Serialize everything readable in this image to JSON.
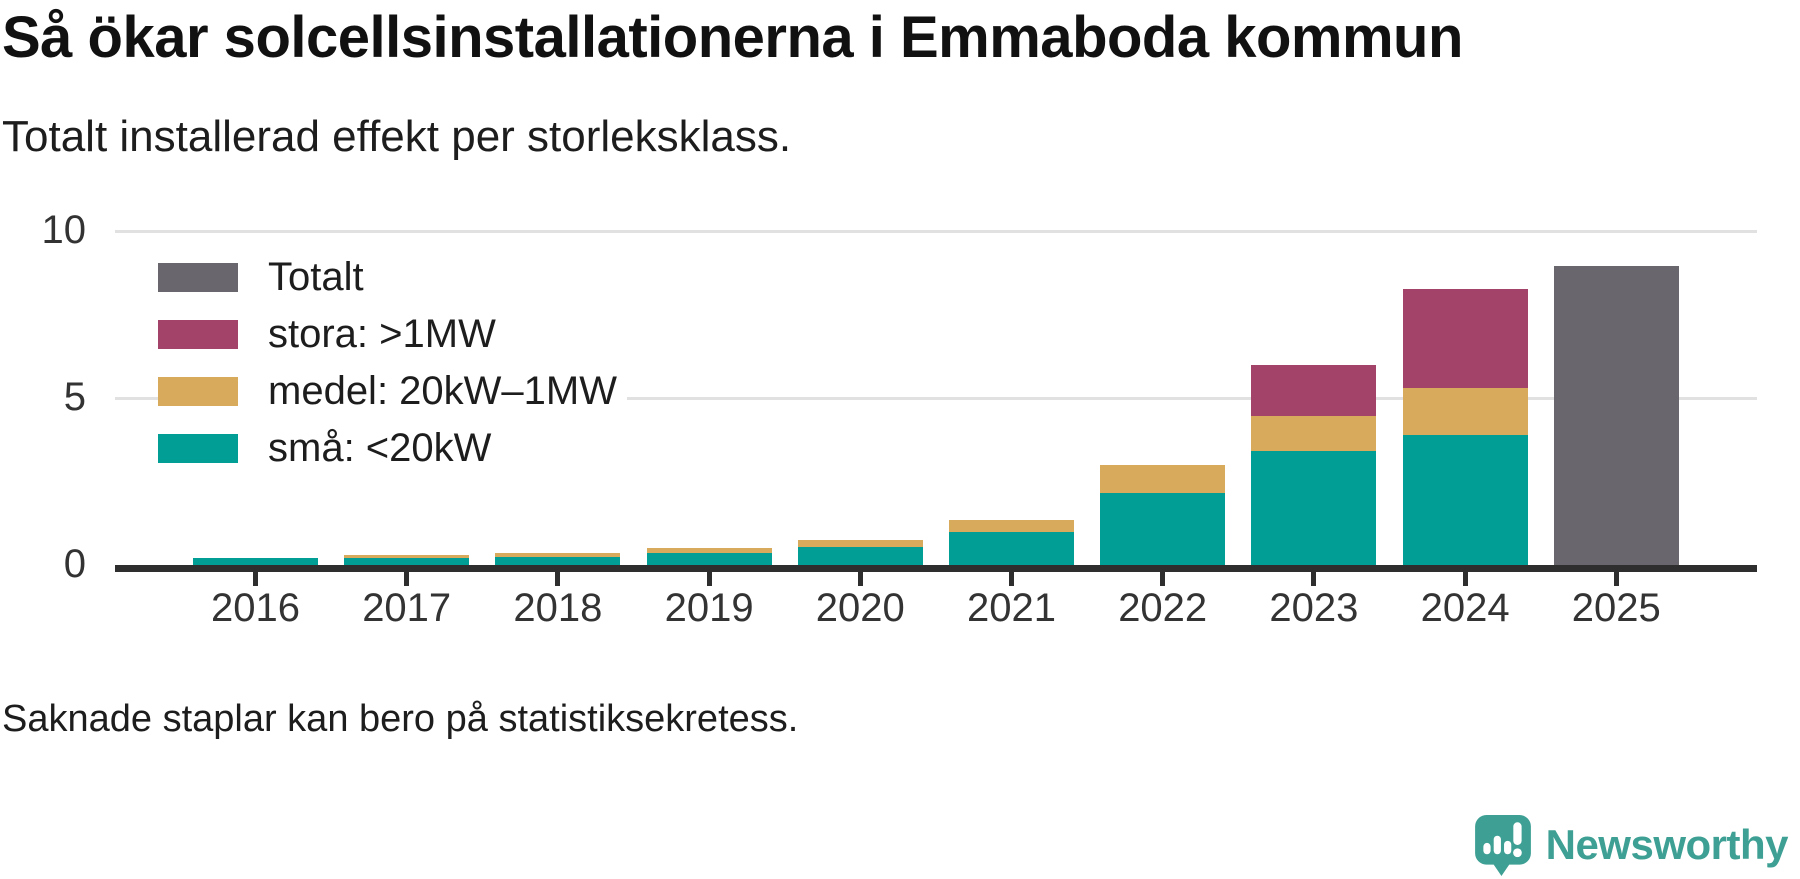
{
  "header": {
    "title": "Så ökar solcellsinstallationerna i Emmaboda kommun",
    "subtitle": "Totalt installerad effekt per storleksklass."
  },
  "footer": {
    "note": "Saknade staplar kan bero på statistiksekretess."
  },
  "branding": {
    "name": "Newsworthy",
    "icon": "newsworthy-speech-bubble-bar-chart-icon",
    "brand_color": "#3ea094"
  },
  "colors": {
    "total": "#69676d",
    "stora": "#a4436a",
    "medel": "#d8ab5c",
    "sma": "#009e94",
    "axis": "#2e2e2e",
    "grid": "#e1e1e1",
    "text": "#1d1d1d"
  },
  "chart_data": {
    "type": "bar",
    "stacked": true,
    "title": "Så ökar solcellsinstallationerna i Emmaboda kommun",
    "subtitle": "Totalt installerad effekt per storleksklass.",
    "xlabel": "",
    "ylabel": "",
    "ylim": [
      0,
      10
    ],
    "yticks": [
      0,
      5,
      10
    ],
    "grid": "horizontal",
    "legend_position": "top-left-inside",
    "categories": [
      "2016",
      "2017",
      "2018",
      "2019",
      "2020",
      "2021",
      "2022",
      "2023",
      "2024",
      "2025"
    ],
    "series": [
      {
        "name": "Totalt",
        "color": "#69676d",
        "values": [
          null,
          null,
          null,
          null,
          null,
          null,
          null,
          null,
          null,
          8.95
        ]
      },
      {
        "name": "stora: >1MW",
        "color": "#a4436a",
        "values": [
          null,
          null,
          null,
          null,
          null,
          null,
          null,
          1.55,
          2.95,
          null
        ]
      },
      {
        "name": "medel: 20kW–1MW",
        "color": "#d8ab5c",
        "values": [
          null,
          0.1,
          0.12,
          0.15,
          0.2,
          0.35,
          0.85,
          1.05,
          1.4,
          null
        ]
      },
      {
        "name": "små: <20kW",
        "color": "#009e94",
        "values": [
          0.2,
          0.2,
          0.25,
          0.35,
          0.55,
          1.0,
          2.15,
          3.4,
          3.9,
          null
        ]
      }
    ]
  }
}
